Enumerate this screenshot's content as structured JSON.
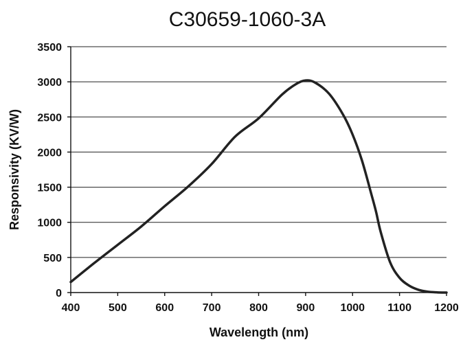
{
  "chart_data": {
    "type": "line",
    "title": "C30659-1060-3A",
    "xlabel": "Wavelength (nm)",
    "ylabel": "Responsivity (KV/W)",
    "xlim": [
      400,
      1200
    ],
    "ylim": [
      0,
      3500
    ],
    "x_ticks": [
      "400",
      "500",
      "600",
      "700",
      "800",
      "900",
      "1000",
      "1100",
      "1200"
    ],
    "y_ticks": [
      "0",
      "500",
      "1000",
      "1500",
      "2000",
      "2500",
      "3000",
      "3500"
    ],
    "grid": "horizontal",
    "series": [
      {
        "x": [
          400,
          450,
          500,
          550,
          600,
          650,
          700,
          750,
          800,
          850,
          880,
          900,
          920,
          950,
          980,
          1000,
          1020,
          1040,
          1050,
          1060,
          1080,
          1100,
          1120,
          1140,
          1160,
          1180,
          1200
        ],
        "y": [
          150,
          420,
          680,
          940,
          1230,
          1510,
          1830,
          2220,
          2480,
          2820,
          2970,
          3020,
          2990,
          2830,
          2530,
          2250,
          1880,
          1400,
          1150,
          860,
          430,
          210,
          100,
          40,
          12,
          3,
          0
        ]
      }
    ],
    "colors": {
      "line": "#222222",
      "grid": "#222222",
      "text": "#111111",
      "background": "#ffffff"
    }
  }
}
